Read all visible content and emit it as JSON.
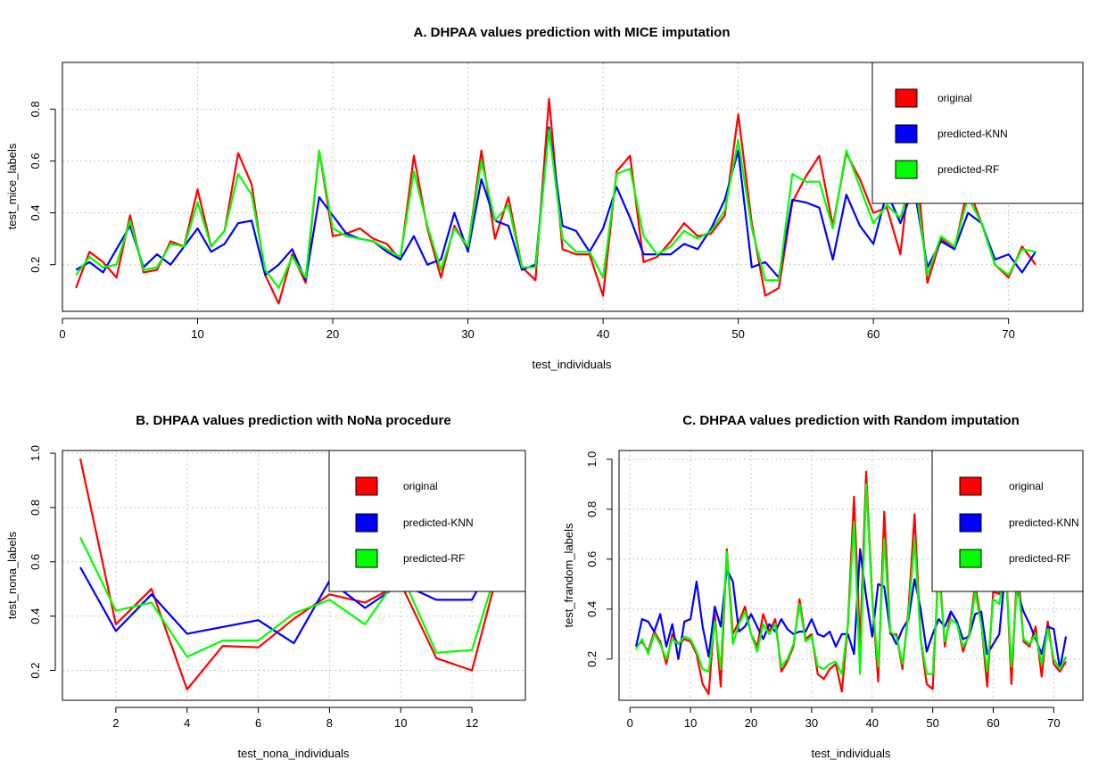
{
  "colors": {
    "original": "#ff0000",
    "predicted-KNN": "#0000ff",
    "predicted-RF": "#00ff00"
  },
  "chart_data": [
    {
      "id": "A",
      "type": "line",
      "title": "A. DHPAA values prediction with MICE imputation",
      "xlabel": "test_individuals",
      "ylabel": "test_mice_labels",
      "xlim": [
        0,
        75.5
      ],
      "ylim": [
        0.02,
        0.98
      ],
      "xticks": [
        0,
        10,
        20,
        30,
        40,
        50,
        60,
        70
      ],
      "xtick_labels": [
        "0",
        "10",
        "20",
        "30",
        "40",
        "50",
        "60",
        "70"
      ],
      "yticks": [
        0.2,
        0.4,
        0.6,
        0.8
      ],
      "ytick_labels": [
        "0.2",
        "0.4",
        "0.6",
        "0.8"
      ],
      "grid": true,
      "legend": "top-right",
      "x": [
        1,
        2,
        3,
        4,
        5,
        6,
        7,
        8,
        9,
        10,
        11,
        12,
        13,
        14,
        15,
        16,
        17,
        18,
        19,
        20,
        21,
        22,
        23,
        24,
        25,
        26,
        27,
        28,
        29,
        30,
        31,
        32,
        33,
        34,
        35,
        36,
        37,
        38,
        39,
        40,
        41,
        42,
        43,
        44,
        45,
        46,
        47,
        48,
        49,
        50,
        51,
        52,
        53,
        54,
        55,
        56,
        57,
        58,
        59,
        60,
        61,
        62,
        63,
        64,
        65,
        66,
        67,
        68,
        69,
        70,
        71,
        72
      ],
      "series": [
        {
          "name": "original",
          "values": [
            0.11,
            0.25,
            0.21,
            0.15,
            0.39,
            0.17,
            0.18,
            0.29,
            0.27,
            0.49,
            0.27,
            0.33,
            0.63,
            0.51,
            0.16,
            0.05,
            0.24,
            0.13,
            0.64,
            0.31,
            0.32,
            0.34,
            0.3,
            0.28,
            0.22,
            0.62,
            0.34,
            0.15,
            0.35,
            0.26,
            0.64,
            0.3,
            0.46,
            0.19,
            0.14,
            0.84,
            0.26,
            0.24,
            0.24,
            0.08,
            0.56,
            0.62,
            0.21,
            0.23,
            0.29,
            0.36,
            0.31,
            0.32,
            0.39,
            0.78,
            0.36,
            0.08,
            0.11,
            0.44,
            0.54,
            0.62,
            0.35,
            0.63,
            0.53,
            0.4,
            0.42,
            0.24,
            0.7,
            0.13,
            0.3,
            0.26,
            0.5,
            0.36,
            0.2,
            0.15,
            0.27,
            0.2
          ]
        },
        {
          "name": "predicted-KNN",
          "values": [
            0.18,
            0.21,
            0.17,
            0.26,
            0.35,
            0.19,
            0.24,
            0.2,
            0.27,
            0.34,
            0.25,
            0.28,
            0.36,
            0.37,
            0.16,
            0.2,
            0.26,
            0.14,
            0.46,
            0.39,
            0.32,
            0.3,
            0.29,
            0.25,
            0.22,
            0.31,
            0.2,
            0.22,
            0.4,
            0.25,
            0.53,
            0.37,
            0.35,
            0.18,
            0.2,
            0.73,
            0.35,
            0.33,
            0.25,
            0.34,
            0.5,
            0.38,
            0.24,
            0.24,
            0.24,
            0.28,
            0.26,
            0.34,
            0.45,
            0.64,
            0.19,
            0.21,
            0.15,
            0.45,
            0.44,
            0.42,
            0.22,
            0.47,
            0.35,
            0.28,
            0.48,
            0.36,
            0.5,
            0.19,
            0.29,
            0.26,
            0.4,
            0.36,
            0.22,
            0.24,
            0.17,
            0.25
          ]
        },
        {
          "name": "predicted-RF",
          "values": [
            0.16,
            0.23,
            0.19,
            0.2,
            0.37,
            0.18,
            0.19,
            0.28,
            0.27,
            0.44,
            0.27,
            0.33,
            0.55,
            0.47,
            0.18,
            0.11,
            0.23,
            0.15,
            0.64,
            0.34,
            0.31,
            0.3,
            0.29,
            0.26,
            0.23,
            0.56,
            0.35,
            0.18,
            0.34,
            0.27,
            0.6,
            0.37,
            0.43,
            0.19,
            0.19,
            0.72,
            0.3,
            0.25,
            0.25,
            0.15,
            0.55,
            0.57,
            0.31,
            0.24,
            0.27,
            0.33,
            0.3,
            0.33,
            0.41,
            0.68,
            0.34,
            0.14,
            0.14,
            0.55,
            0.52,
            0.52,
            0.34,
            0.64,
            0.5,
            0.36,
            0.43,
            0.38,
            0.56,
            0.16,
            0.31,
            0.27,
            0.46,
            0.36,
            0.2,
            0.16,
            0.26,
            0.25
          ]
        }
      ]
    },
    {
      "id": "B",
      "type": "line",
      "title": "B. DHPAA values prediction with NoNa procedure",
      "xlabel": "test_nona_individuals",
      "ylabel": "test_nona_labels",
      "xlim": [
        0.5,
        13.5
      ],
      "ylim": [
        0.09,
        1.01
      ],
      "xticks": [
        2,
        4,
        6,
        8,
        10,
        12
      ],
      "xtick_labels": [
        "2",
        "4",
        "6",
        "8",
        "10",
        "12"
      ],
      "yticks": [
        0.2,
        0.4,
        0.6,
        0.8,
        1.0
      ],
      "ytick_labels": [
        "0.2",
        "0.4",
        "0.6",
        "0.8",
        "1.0"
      ],
      "grid": true,
      "legend": "top-right",
      "x": [
        1,
        2,
        3,
        4,
        5,
        6,
        7,
        8,
        9,
        10,
        11,
        12,
        13
      ],
      "series": [
        {
          "name": "original",
          "values": [
            0.98,
            0.37,
            0.5,
            0.13,
            0.29,
            0.285,
            0.39,
            0.48,
            0.45,
            0.52,
            0.245,
            0.2,
            0.7
          ]
        },
        {
          "name": "predicted-KNN",
          "values": [
            0.58,
            0.345,
            0.48,
            0.335,
            0.36,
            0.385,
            0.3,
            0.53,
            0.43,
            0.52,
            0.46,
            0.46,
            0.7
          ]
        },
        {
          "name": "predicted-RF",
          "values": [
            0.69,
            0.42,
            0.45,
            0.25,
            0.31,
            0.31,
            0.41,
            0.46,
            0.37,
            0.56,
            0.265,
            0.275,
            0.7
          ]
        }
      ]
    },
    {
      "id": "C",
      "type": "line",
      "title": "C. DHPAA values prediction with Random imputation",
      "xlabel": "test_individuals",
      "ylabel": "test_frandom_labels",
      "xlim": [
        -1.8,
        74.8
      ],
      "ylim": [
        0.035,
        1.035
      ],
      "xticks": [
        0,
        10,
        20,
        30,
        40,
        50,
        60,
        70
      ],
      "xtick_labels": [
        "0",
        "10",
        "20",
        "30",
        "40",
        "50",
        "60",
        "70"
      ],
      "yticks": [
        0.2,
        0.4,
        0.6,
        0.8,
        1.0
      ],
      "ytick_labels": [
        "0.2",
        "0.4",
        "0.6",
        "0.8",
        "1.0"
      ],
      "grid": true,
      "legend": "top-right",
      "x": [
        1,
        2,
        3,
        4,
        5,
        6,
        7,
        8,
        9,
        10,
        11,
        12,
        13,
        14,
        15,
        16,
        17,
        18,
        19,
        20,
        21,
        22,
        23,
        24,
        25,
        26,
        27,
        28,
        29,
        30,
        31,
        32,
        33,
        34,
        35,
        36,
        37,
        38,
        39,
        40,
        41,
        42,
        43,
        44,
        45,
        46,
        47,
        48,
        49,
        50,
        51,
        52,
        53,
        54,
        55,
        56,
        57,
        58,
        59,
        60,
        61,
        62,
        63,
        64,
        65,
        66,
        67,
        68,
        69,
        70,
        71,
        72
      ],
      "series": [
        {
          "name": "original",
          "values": [
            0.25,
            0.27,
            0.23,
            0.31,
            0.27,
            0.18,
            0.3,
            0.26,
            0.28,
            0.27,
            0.22,
            0.1,
            0.06,
            0.38,
            0.09,
            0.64,
            0.3,
            0.35,
            0.41,
            0.3,
            0.25,
            0.38,
            0.31,
            0.36,
            0.15,
            0.19,
            0.25,
            0.44,
            0.28,
            0.3,
            0.14,
            0.12,
            0.16,
            0.18,
            0.07,
            0.34,
            0.85,
            0.25,
            0.95,
            0.45,
            0.11,
            0.79,
            0.3,
            0.3,
            0.16,
            0.4,
            0.78,
            0.28,
            0.1,
            0.08,
            0.6,
            0.25,
            0.39,
            0.35,
            0.23,
            0.3,
            0.5,
            0.35,
            0.09,
            0.47,
            0.46,
            0.63,
            0.1,
            0.59,
            0.27,
            0.25,
            0.33,
            0.13,
            0.35,
            0.18,
            0.15,
            0.19
          ]
        },
        {
          "name": "predicted-KNN",
          "values": [
            0.25,
            0.36,
            0.35,
            0.31,
            0.38,
            0.25,
            0.34,
            0.2,
            0.35,
            0.36,
            0.51,
            0.33,
            0.21,
            0.41,
            0.33,
            0.56,
            0.51,
            0.31,
            0.33,
            0.38,
            0.33,
            0.28,
            0.34,
            0.31,
            0.36,
            0.32,
            0.3,
            0.31,
            0.31,
            0.36,
            0.3,
            0.29,
            0.31,
            0.25,
            0.3,
            0.3,
            0.22,
            0.64,
            0.45,
            0.29,
            0.5,
            0.49,
            0.31,
            0.26,
            0.32,
            0.36,
            0.52,
            0.4,
            0.23,
            0.3,
            0.36,
            0.33,
            0.39,
            0.35,
            0.28,
            0.29,
            0.38,
            0.39,
            0.22,
            0.26,
            0.3,
            0.56,
            0.48,
            0.47,
            0.39,
            0.34,
            0.28,
            0.22,
            0.33,
            0.32,
            0.16,
            0.29
          ]
        },
        {
          "name": "predicted-RF",
          "values": [
            0.24,
            0.28,
            0.22,
            0.3,
            0.26,
            0.2,
            0.28,
            0.26,
            0.29,
            0.28,
            0.23,
            0.16,
            0.15,
            0.35,
            0.16,
            0.63,
            0.26,
            0.34,
            0.39,
            0.3,
            0.23,
            0.34,
            0.3,
            0.34,
            0.17,
            0.2,
            0.26,
            0.42,
            0.27,
            0.29,
            0.17,
            0.16,
            0.18,
            0.19,
            0.14,
            0.34,
            0.75,
            0.14,
            0.9,
            0.44,
            0.17,
            0.68,
            0.31,
            0.29,
            0.18,
            0.38,
            0.68,
            0.28,
            0.14,
            0.14,
            0.55,
            0.27,
            0.36,
            0.34,
            0.25,
            0.29,
            0.47,
            0.34,
            0.15,
            0.44,
            0.42,
            0.57,
            0.17,
            0.52,
            0.28,
            0.26,
            0.3,
            0.18,
            0.32,
            0.2,
            0.16,
            0.21
          ]
        }
      ]
    }
  ]
}
